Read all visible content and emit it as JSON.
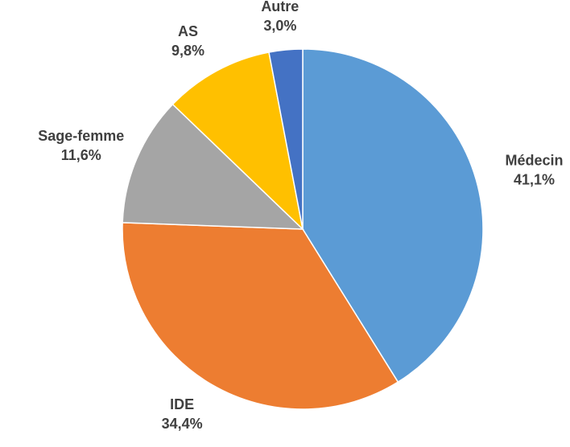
{
  "chart_data": {
    "type": "pie",
    "categories": [
      "Médecin",
      "IDE",
      "Sage-femme",
      "AS",
      "Autre"
    ],
    "values": [
      41.1,
      34.4,
      11.6,
      9.8,
      3.0
    ],
    "value_labels": [
      "41,1%",
      "34,4%",
      "11,6%",
      "9,8%",
      "3,0%"
    ],
    "colors": [
      "#5b9bd5",
      "#ed7d31",
      "#a5a5a5",
      "#ffc000",
      "#4472c4"
    ]
  }
}
